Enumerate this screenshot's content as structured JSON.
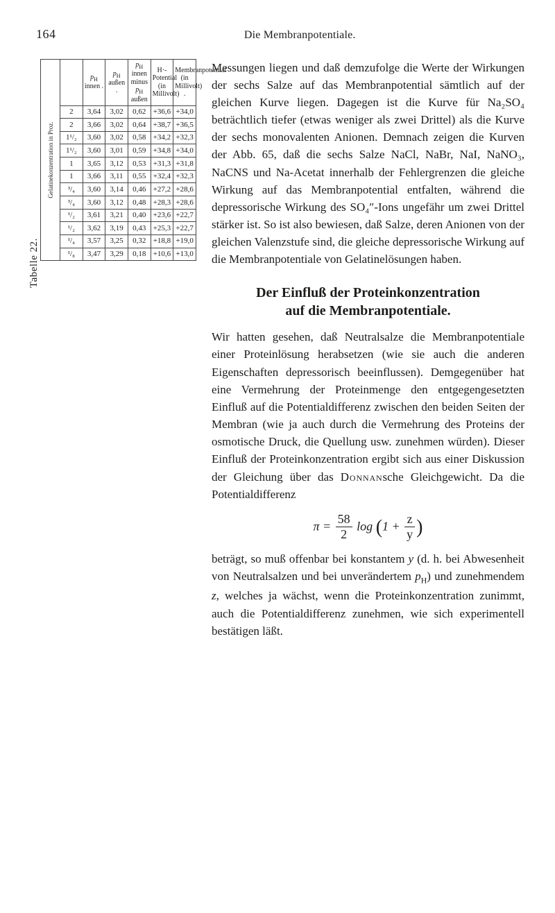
{
  "running_head": {
    "pageno": "164",
    "title": "Die Membranpotentiale."
  },
  "para1": "Messungen liegen und daß demzufolge die Werte der Wirkungen der sechs Salze auf das Membranpotential sämtlich auf der gleichen Kurve liegen. Dagegen ist die Kurve für Na₂SO₄ beträchtlich tiefer (etwas weniger als zwei Drittel) als die Kurve der sechs mono­valenten Anionen. Demnach zeigen die Kurven der Abb. 65, daß die sechs Salze NaCl, NaBr, NaI, NaNO₃, NaCNS und Na-Acetat inner­halb der Fehlergrenzen die gleiche Wirkung auf das Membranpotential entfalten, während die depressorische Wirkung des SO₄″-Ions un­gefähr um zwei Drittel stärker ist. So ist also bewiesen, daß Salze, deren Anionen von der gleichen Valenzstufe sind, die gleiche depres­sorische Wirkung auf die Membranpotentiale von Gelatinelösungen haben.",
  "section_title_line1": "Der Einfluß der Proteinkonzentration",
  "section_title_line2": "auf die Membranpotentiale.",
  "para2": "Wir hatten gesehen, daß Neutralsalze die Membranpotentiale einer Proteinlösung herab­setzen (wie sie auch die anderen Eigenschaften depressorisch beeinflussen). Demgegenüber hat eine Vermehrung der Proteinmenge den ent­gegengesetzten Einfluß auf die Potentialdifferenz zwischen den beiden Seiten der Membran (wie ja auch durch die Vermehrung des Proteins der osmotische Druck, die Quellung usw. zunehmen würden). Dieser Einfluß der Proteinkonzen­tration ergibt sich aus einer Diskussion der Gleichung über das Donnansche Gleichgewicht. Da die Potentialdifferenz",
  "eq": {
    "lhs": "π",
    "coef_num": "58",
    "coef_den": "2",
    "log": "log",
    "inner_lhs": "1 +",
    "inner_num": "z",
    "inner_den": "y"
  },
  "para3": "beträgt, so muß offenbar bei konstantem y (d. h. bei Abwesenheit von Neutralsalzen und bei un­verändertem pH) und zunehmendem z, welches ja wächst, wenn die Proteinkonzentration zu­nimmt, auch die Potentialdifferenz zunehmen, wie sich experimentell bestätigen läßt.",
  "table": {
    "caption": "Tabelle 22.",
    "left_block_label": "Gelatinekonzentration in Proz.",
    "left_block_rows": [
      "pH innen .",
      "pH außen .",
      "pH innen minus pH außen"
    ],
    "right_block_rows": [
      "H·-Potential (in Millivolt)",
      "Membranpotential (in Millivolt) ."
    ],
    "concentrations": [
      "2",
      "2",
      "1¹/₂",
      "1¹/₂",
      "1",
      "1",
      "³/₄",
      "³/₄",
      "¹/₂",
      "¹/₂",
      "¹/₄",
      "¹/₈"
    ],
    "rows": {
      "ph_innen": [
        "3,64",
        "3,66",
        "3,60",
        "3,60",
        "3,65",
        "3,66",
        "3,60",
        "3,60",
        "3,61",
        "3,62",
        "3,57",
        "3,47"
      ],
      "ph_aussen": [
        "3,02",
        "3,02",
        "3,02",
        "3,01",
        "3,12",
        "3,11",
        "3,14",
        "3,12",
        "3,21",
        "3,19",
        "3,25",
        "3,29"
      ],
      "ph_diff": [
        "0,62",
        "0,64",
        "0,58",
        "0,59",
        "0,53",
        "0,55",
        "0,46",
        "0,48",
        "0,40",
        "0,43",
        "0,32",
        "0,18"
      ],
      "h_pot": [
        "+36,6",
        "+38,7",
        "+34,2",
        "+34,8",
        "+31,3",
        "+32,4",
        "+27,2",
        "+28,3",
        "+23,6",
        "+25,3",
        "+18,8",
        "+10,6"
      ],
      "mem_pot": [
        "+34,0",
        "+36,5",
        "+32,3",
        "+34,0",
        "+31,8",
        "+32,3",
        "+28,6",
        "+28,6",
        "+22,7",
        "+22,7",
        "+19,0",
        "+13,0"
      ]
    },
    "style": {
      "border_color": "#444444",
      "font_size_pt": 8,
      "caption_font_size_pt": 11,
      "background": "#ffffff"
    }
  },
  "colors": {
    "text": "#1d1c1b",
    "bg": "#ffffff",
    "rule": "#444444"
  },
  "typography": {
    "body_font": "Georgia, serif",
    "body_size_pt": 12.5,
    "heading_size_pt": 15,
    "line_height": 1.48
  }
}
